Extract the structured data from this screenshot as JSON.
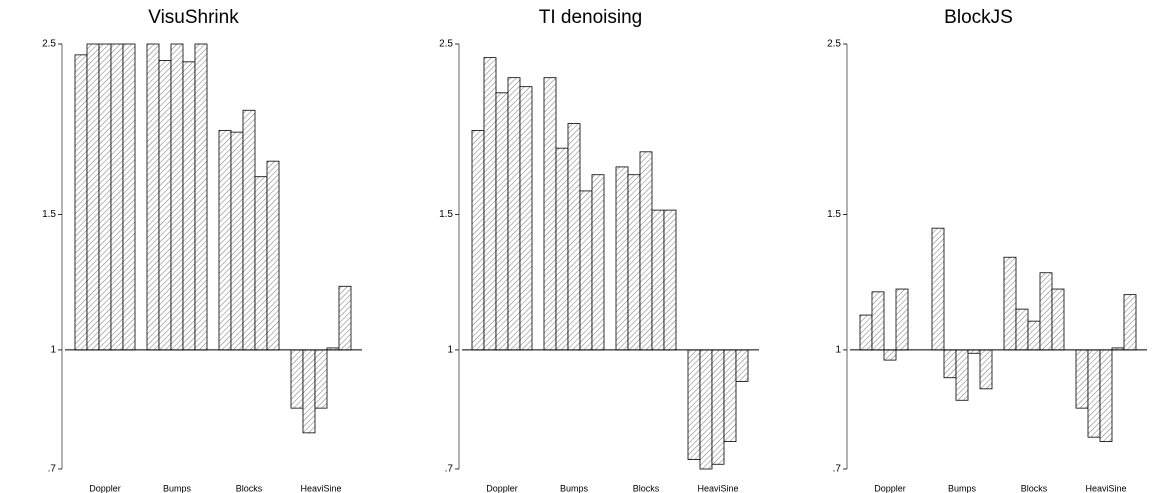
{
  "chart_data": [
    {
      "type": "bar",
      "title": "VisuShrink",
      "log_scale": true,
      "categories": [
        "Doppler",
        "Bumps",
        "Blocks",
        "HeaviSine"
      ],
      "values": [
        [
          2.42,
          2.5,
          2.5,
          2.5,
          2.5
        ],
        [
          2.5,
          2.38,
          2.5,
          2.37,
          2.5
        ],
        [
          1.93,
          1.92,
          2.05,
          1.68,
          1.76
        ],
        [
          0.84,
          0.78,
          0.84,
          1.006,
          1.21
        ]
      ],
      "ylim": [
        0.7,
        2.5
      ],
      "yticks": [
        {
          "value": 0.7,
          "label": ".7"
        },
        1,
        1.5,
        2.5
      ]
    },
    {
      "type": "bar",
      "title": "TI denoising",
      "log_scale": true,
      "categories": [
        "Doppler",
        "Bumps",
        "Blocks",
        "HeaviSine"
      ],
      "values": [
        [
          1.93,
          2.4,
          2.16,
          2.26,
          2.2
        ],
        [
          2.26,
          1.83,
          1.97,
          1.61,
          1.69
        ],
        [
          1.73,
          1.69,
          1.81,
          1.52,
          1.52
        ],
        [
          0.72,
          0.7,
          0.71,
          0.76,
          0.91
        ]
      ],
      "ylim": [
        0.7,
        2.5
      ],
      "yticks": [
        {
          "value": 0.7,
          "label": ".7"
        },
        1,
        1.5,
        2.5
      ]
    },
    {
      "type": "bar",
      "title": "BlockJS",
      "log_scale": true,
      "categories": [
        "Doppler",
        "Bumps",
        "Blocks",
        "HeaviSine"
      ],
      "values": [
        [
          1.11,
          1.19,
          0.97,
          1.2,
          1.0
        ],
        [
          1.44,
          0.92,
          0.86,
          0.99,
          0.89
        ],
        [
          1.32,
          1.13,
          1.09,
          1.26,
          1.2
        ],
        [
          0.84,
          0.77,
          0.76,
          1.006,
          1.18
        ]
      ],
      "ylim": [
        0.7,
        2.5
      ],
      "yticks": [
        {
          "value": 0.7,
          "label": ".7"
        },
        1,
        1.5,
        2.5
      ]
    }
  ]
}
